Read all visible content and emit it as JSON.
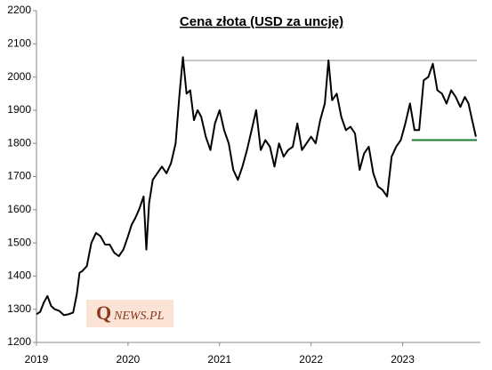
{
  "chart_data": {
    "type": "line",
    "title": "Cena złota (USD za uncję)",
    "x": [
      2019.0,
      2019.04,
      2019.08,
      2019.12,
      2019.16,
      2019.2,
      2019.25,
      2019.3,
      2019.35,
      2019.4,
      2019.44,
      2019.47,
      2019.5,
      2019.55,
      2019.6,
      2019.65,
      2019.7,
      2019.75,
      2019.8,
      2019.85,
      2019.9,
      2019.95,
      2020.0,
      2020.04,
      2020.08,
      2020.12,
      2020.17,
      2020.2,
      2020.23,
      2020.27,
      2020.32,
      2020.37,
      2020.42,
      2020.47,
      2020.52,
      2020.56,
      2020.6,
      2020.64,
      2020.68,
      2020.72,
      2020.76,
      2020.8,
      2020.85,
      2020.9,
      2020.95,
      2021.0,
      2021.05,
      2021.1,
      2021.15,
      2021.2,
      2021.25,
      2021.3,
      2021.35,
      2021.4,
      2021.45,
      2021.5,
      2021.55,
      2021.6,
      2021.65,
      2021.7,
      2021.75,
      2021.8,
      2021.85,
      2021.9,
      2021.95,
      2022.0,
      2022.05,
      2022.1,
      2022.15,
      2022.19,
      2022.23,
      2022.28,
      2022.33,
      2022.38,
      2022.43,
      2022.48,
      2022.53,
      2022.58,
      2022.63,
      2022.68,
      2022.73,
      2022.78,
      2022.83,
      2022.88,
      2022.93,
      2022.98,
      2023.03,
      2023.08,
      2023.13,
      2023.18,
      2023.23,
      2023.28,
      2023.33,
      2023.38,
      2023.43,
      2023.48,
      2023.53,
      2023.58,
      2023.63,
      2023.68,
      2023.72,
      2023.76,
      2023.8
    ],
    "values": [
      1285,
      1292,
      1320,
      1340,
      1310,
      1300,
      1295,
      1282,
      1285,
      1290,
      1345,
      1410,
      1415,
      1430,
      1500,
      1530,
      1520,
      1495,
      1495,
      1470,
      1460,
      1480,
      1520,
      1555,
      1575,
      1600,
      1640,
      1480,
      1620,
      1690,
      1710,
      1730,
      1710,
      1740,
      1800,
      1940,
      2060,
      1950,
      1960,
      1870,
      1900,
      1880,
      1820,
      1780,
      1860,
      1900,
      1840,
      1800,
      1720,
      1690,
      1730,
      1780,
      1840,
      1900,
      1780,
      1810,
      1790,
      1730,
      1800,
      1760,
      1780,
      1790,
      1860,
      1780,
      1800,
      1820,
      1800,
      1870,
      1920,
      2050,
      1930,
      1950,
      1880,
      1840,
      1850,
      1830,
      1720,
      1770,
      1790,
      1710,
      1670,
      1660,
      1640,
      1760,
      1790,
      1810,
      1860,
      1920,
      1840,
      1840,
      1990,
      2000,
      2040,
      1960,
      1950,
      1920,
      1960,
      1940,
      1910,
      1940,
      1920,
      1870,
      1820
    ],
    "color": "#000000",
    "xlim": [
      2019,
      2023.85
    ],
    "xticks": [
      2019,
      2020,
      2021,
      2022,
      2023
    ],
    "ylim": [
      1200,
      2200
    ],
    "yticks": [
      1200,
      1300,
      1400,
      1500,
      1600,
      1700,
      1800,
      1900,
      2000,
      2100,
      2200
    ],
    "reference_lines": [
      {
        "value": 2050,
        "x_start": 2020.6,
        "color": "#c8c8c8"
      },
      {
        "value": 1810,
        "x_start": 2023.1,
        "color": "#1e7b2e"
      }
    ],
    "logo_q": "Q",
    "logo_rest": "NEWS.PL"
  }
}
